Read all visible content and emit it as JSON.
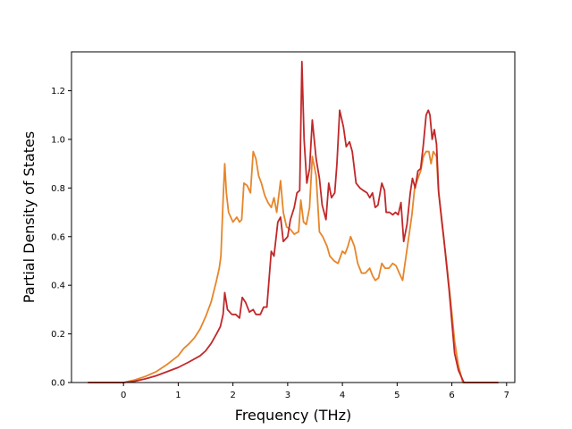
{
  "chart_data": {
    "type": "line",
    "xlabel": "Frequency (THz)",
    "ylabel": "Partial Density of States",
    "xlim": [
      -0.95,
      7.15
    ],
    "ylim": [
      0,
      1.36
    ],
    "x_ticks": [
      "0",
      "1",
      "2",
      "3",
      "4",
      "5",
      "6",
      "7"
    ],
    "y_ticks": [
      "0.0",
      "0.2",
      "0.4",
      "0.6",
      "0.8",
      "1.0",
      "1.2"
    ],
    "grid": false,
    "legend": "none",
    "series": [
      {
        "color": "#e6862a",
        "points": [
          [
            -0.65,
            0
          ],
          [
            0,
            0
          ],
          [
            0.2,
            0.01
          ],
          [
            0.4,
            0.025
          ],
          [
            0.6,
            0.045
          ],
          [
            0.8,
            0.075
          ],
          [
            1.0,
            0.11
          ],
          [
            1.1,
            0.14
          ],
          [
            1.2,
            0.16
          ],
          [
            1.3,
            0.185
          ],
          [
            1.4,
            0.22
          ],
          [
            1.5,
            0.27
          ],
          [
            1.6,
            0.33
          ],
          [
            1.7,
            0.42
          ],
          [
            1.75,
            0.47
          ],
          [
            1.78,
            0.52
          ],
          [
            1.82,
            0.75
          ],
          [
            1.85,
            0.9
          ],
          [
            1.88,
            0.78
          ],
          [
            1.92,
            0.7
          ],
          [
            2.0,
            0.66
          ],
          [
            2.07,
            0.68
          ],
          [
            2.12,
            0.66
          ],
          [
            2.16,
            0.67
          ],
          [
            2.2,
            0.82
          ],
          [
            2.26,
            0.81
          ],
          [
            2.32,
            0.78
          ],
          [
            2.37,
            0.95
          ],
          [
            2.42,
            0.92
          ],
          [
            2.47,
            0.85
          ],
          [
            2.52,
            0.82
          ],
          [
            2.58,
            0.77
          ],
          [
            2.64,
            0.74
          ],
          [
            2.7,
            0.72
          ],
          [
            2.75,
            0.76
          ],
          [
            2.8,
            0.7
          ],
          [
            2.87,
            0.83
          ],
          [
            2.92,
            0.7
          ],
          [
            2.98,
            0.64
          ],
          [
            3.05,
            0.63
          ],
          [
            3.12,
            0.61
          ],
          [
            3.2,
            0.62
          ],
          [
            3.24,
            0.75
          ],
          [
            3.29,
            0.66
          ],
          [
            3.34,
            0.65
          ],
          [
            3.4,
            0.72
          ],
          [
            3.45,
            0.93
          ],
          [
            3.52,
            0.85
          ],
          [
            3.58,
            0.62
          ],
          [
            3.64,
            0.6
          ],
          [
            3.72,
            0.56
          ],
          [
            3.77,
            0.52
          ],
          [
            3.85,
            0.5
          ],
          [
            3.92,
            0.49
          ],
          [
            4.0,
            0.54
          ],
          [
            4.05,
            0.53
          ],
          [
            4.1,
            0.56
          ],
          [
            4.15,
            0.6
          ],
          [
            4.22,
            0.56
          ],
          [
            4.28,
            0.49
          ],
          [
            4.35,
            0.45
          ],
          [
            4.42,
            0.45
          ],
          [
            4.5,
            0.47
          ],
          [
            4.55,
            0.44
          ],
          [
            4.6,
            0.42
          ],
          [
            4.66,
            0.43
          ],
          [
            4.72,
            0.49
          ],
          [
            4.78,
            0.47
          ],
          [
            4.85,
            0.47
          ],
          [
            4.92,
            0.49
          ],
          [
            4.98,
            0.48
          ],
          [
            5.04,
            0.45
          ],
          [
            5.1,
            0.42
          ],
          [
            5.15,
            0.5
          ],
          [
            5.22,
            0.61
          ],
          [
            5.27,
            0.69
          ],
          [
            5.32,
            0.8
          ],
          [
            5.38,
            0.84
          ],
          [
            5.43,
            0.87
          ],
          [
            5.48,
            0.93
          ],
          [
            5.53,
            0.95
          ],
          [
            5.58,
            0.95
          ],
          [
            5.62,
            0.9
          ],
          [
            5.66,
            0.95
          ],
          [
            5.72,
            0.93
          ],
          [
            5.75,
            0.8
          ],
          [
            5.82,
            0.65
          ],
          [
            5.9,
            0.5
          ],
          [
            5.98,
            0.33
          ],
          [
            6.05,
            0.17
          ],
          [
            6.12,
            0.07
          ],
          [
            6.2,
            0.0
          ],
          [
            6.85,
            0.0
          ]
        ]
      },
      {
        "color": "#c1282a",
        "points": [
          [
            -0.65,
            0
          ],
          [
            0,
            0
          ],
          [
            0.2,
            0.005
          ],
          [
            0.4,
            0.015
          ],
          [
            0.6,
            0.028
          ],
          [
            0.8,
            0.045
          ],
          [
            1.0,
            0.062
          ],
          [
            1.2,
            0.085
          ],
          [
            1.4,
            0.11
          ],
          [
            1.5,
            0.13
          ],
          [
            1.6,
            0.16
          ],
          [
            1.7,
            0.2
          ],
          [
            1.77,
            0.23
          ],
          [
            1.82,
            0.28
          ],
          [
            1.85,
            0.37
          ],
          [
            1.9,
            0.3
          ],
          [
            1.98,
            0.28
          ],
          [
            2.05,
            0.28
          ],
          [
            2.12,
            0.265
          ],
          [
            2.17,
            0.35
          ],
          [
            2.23,
            0.33
          ],
          [
            2.3,
            0.29
          ],
          [
            2.37,
            0.3
          ],
          [
            2.42,
            0.28
          ],
          [
            2.5,
            0.28
          ],
          [
            2.56,
            0.31
          ],
          [
            2.62,
            0.31
          ],
          [
            2.7,
            0.54
          ],
          [
            2.75,
            0.52
          ],
          [
            2.82,
            0.66
          ],
          [
            2.87,
            0.68
          ],
          [
            2.92,
            0.58
          ],
          [
            3.0,
            0.6
          ],
          [
            3.05,
            0.67
          ],
          [
            3.12,
            0.72
          ],
          [
            3.17,
            0.78
          ],
          [
            3.22,
            0.79
          ],
          [
            3.26,
            1.32
          ],
          [
            3.3,
            1.0
          ],
          [
            3.35,
            0.82
          ],
          [
            3.4,
            0.88
          ],
          [
            3.45,
            1.08
          ],
          [
            3.52,
            0.92
          ],
          [
            3.58,
            0.84
          ],
          [
            3.63,
            0.73
          ],
          [
            3.7,
            0.67
          ],
          [
            3.75,
            0.82
          ],
          [
            3.8,
            0.76
          ],
          [
            3.86,
            0.78
          ],
          [
            3.9,
            0.9
          ],
          [
            3.95,
            1.12
          ],
          [
            4.02,
            1.05
          ],
          [
            4.07,
            0.97
          ],
          [
            4.13,
            0.99
          ],
          [
            4.18,
            0.95
          ],
          [
            4.25,
            0.82
          ],
          [
            4.32,
            0.8
          ],
          [
            4.38,
            0.79
          ],
          [
            4.45,
            0.78
          ],
          [
            4.5,
            0.76
          ],
          [
            4.55,
            0.78
          ],
          [
            4.6,
            0.72
          ],
          [
            4.65,
            0.73
          ],
          [
            4.72,
            0.82
          ],
          [
            4.77,
            0.79
          ],
          [
            4.8,
            0.7
          ],
          [
            4.86,
            0.7
          ],
          [
            4.92,
            0.69
          ],
          [
            4.97,
            0.7
          ],
          [
            5.02,
            0.69
          ],
          [
            5.07,
            0.74
          ],
          [
            5.12,
            0.58
          ],
          [
            5.18,
            0.65
          ],
          [
            5.24,
            0.78
          ],
          [
            5.28,
            0.84
          ],
          [
            5.33,
            0.8
          ],
          [
            5.38,
            0.87
          ],
          [
            5.43,
            0.88
          ],
          [
            5.48,
            0.98
          ],
          [
            5.53,
            1.1
          ],
          [
            5.57,
            1.12
          ],
          [
            5.6,
            1.1
          ],
          [
            5.64,
            1.0
          ],
          [
            5.68,
            1.04
          ],
          [
            5.72,
            0.98
          ],
          [
            5.76,
            0.78
          ],
          [
            5.85,
            0.6
          ],
          [
            5.95,
            0.38
          ],
          [
            6.05,
            0.12
          ],
          [
            6.12,
            0.05
          ],
          [
            6.22,
            0.0
          ],
          [
            6.85,
            0.0
          ]
        ]
      }
    ]
  }
}
